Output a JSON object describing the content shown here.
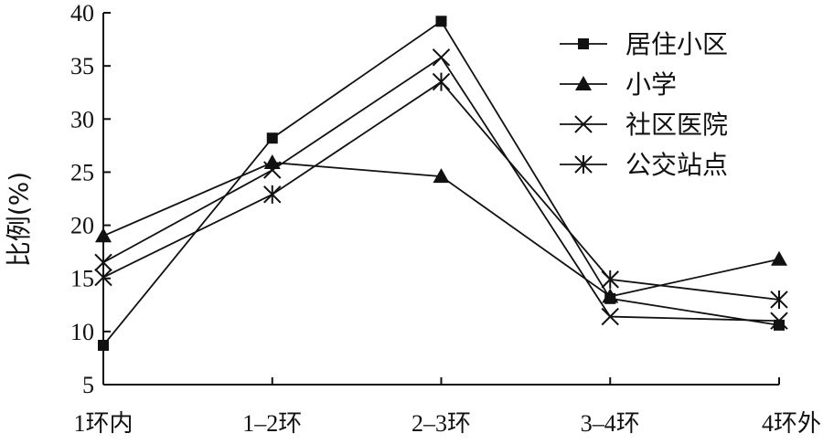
{
  "chart_data": {
    "type": "line",
    "title": "",
    "xlabel": "",
    "ylabel": "比例(%)",
    "ylim": [
      5,
      40
    ],
    "yticks": [
      5,
      10,
      15,
      20,
      25,
      30,
      35,
      40
    ],
    "categories": [
      "1环内",
      "1–2环",
      "2–3环",
      "3–4环",
      "4环外"
    ],
    "grid": false,
    "legend_position": "top-right",
    "series": [
      {
        "name": "居住小区",
        "marker": "square",
        "values": [
          8.7,
          28.2,
          39.2,
          13.1,
          10.6
        ]
      },
      {
        "name": "小学",
        "marker": "triangle",
        "values": [
          19.0,
          25.9,
          24.6,
          13.3,
          16.8
        ]
      },
      {
        "name": "社区医院",
        "marker": "x",
        "values": [
          16.5,
          25.2,
          35.8,
          11.4,
          11.0
        ]
      },
      {
        "name": "公交站点",
        "marker": "asterisk",
        "values": [
          15.1,
          22.9,
          33.5,
          14.9,
          13.0
        ]
      }
    ]
  }
}
